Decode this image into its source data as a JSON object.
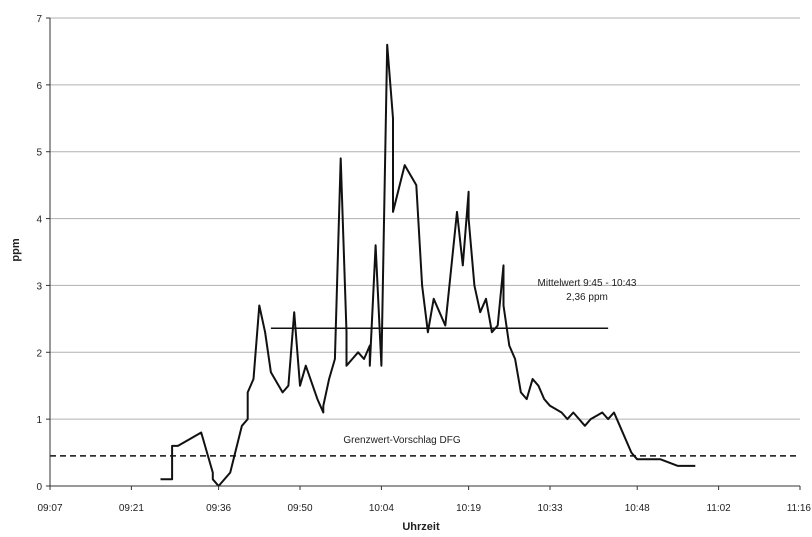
{
  "chart_data": {
    "type": "line",
    "title": "",
    "xlabel": "Uhrzeit",
    "ylabel": "ppm",
    "xlim": [
      "09:07",
      "11:16"
    ],
    "ylim": [
      0,
      7
    ],
    "grid": "horizontal",
    "x_ticks": [
      "09:07",
      "09:21",
      "09:36",
      "09:50",
      "10:04",
      "10:19",
      "10:33",
      "10:48",
      "11:02",
      "11:16"
    ],
    "y_ticks": [
      0,
      1,
      2,
      3,
      4,
      5,
      6,
      7
    ],
    "series": [
      {
        "x": [
          "09:26",
          "09:28",
          "09:28",
          "09:29",
          "09:31",
          "09:33",
          "09:35",
          "09:35",
          "09:36",
          "09:38",
          "09:40",
          "09:41",
          "09:41",
          "09:42",
          "09:43",
          "09:44",
          "09:45",
          "09:47",
          "09:47",
          "09:48",
          "09:49",
          "09:50",
          "09:51",
          "09:53",
          "09:54",
          "09:54",
          "09:55",
          "09:56",
          "09:57",
          "09:58",
          "09:58",
          "09:59",
          "10:00",
          "10:01",
          "10:02",
          "10:02",
          "10:03",
          "10:04",
          "10:05",
          "10:06",
          "10:06",
          "10:08",
          "10:10",
          "10:11",
          "10:12",
          "10:12",
          "10:13",
          "10:15",
          "10:17",
          "10:18",
          "10:19",
          "10:19",
          "10:20",
          "10:21",
          "10:22",
          "10:23",
          "10:24",
          "10:25",
          "10:25",
          "10:26",
          "10:27",
          "10:28",
          "10:29",
          "10:30",
          "10:31",
          "10:32",
          "10:33",
          "10:35",
          "10:36",
          "10:37",
          "10:38",
          "10:39",
          "10:40",
          "10:42",
          "10:43",
          "10:44",
          "10:45",
          "10:47",
          "10:48",
          "10:50",
          "10:52",
          "10:55",
          "10:58"
        ],
        "y": [
          0.1,
          0.1,
          0.6,
          0.6,
          0.7,
          0.8,
          0.2,
          0.1,
          0.0,
          0.2,
          0.9,
          1.0,
          1.4,
          1.6,
          2.7,
          2.3,
          1.7,
          1.4,
          1.4,
          1.5,
          2.6,
          1.5,
          1.8,
          1.3,
          1.1,
          1.2,
          1.6,
          1.9,
          4.9,
          2.3,
          1.8,
          1.9,
          2.0,
          1.9,
          2.1,
          1.8,
          3.6,
          1.8,
          6.6,
          5.5,
          4.1,
          4.8,
          4.5,
          3.0,
          2.3,
          2.3,
          2.8,
          2.4,
          4.1,
          3.3,
          4.4,
          4.0,
          3.0,
          2.6,
          2.8,
          2.3,
          2.4,
          3.3,
          2.7,
          2.1,
          1.9,
          1.4,
          1.3,
          1.6,
          1.5,
          1.3,
          1.2,
          1.1,
          1.0,
          1.1,
          1.0,
          0.9,
          1.0,
          1.1,
          1.0,
          1.1,
          0.9,
          0.5,
          0.4,
          0.4,
          0.4,
          0.3,
          0.3
        ]
      }
    ],
    "reference_lines": [
      {
        "label": "Grenzwert-Vorschlag DFG",
        "y": 0.45,
        "x_from": "09:07",
        "x_to": "11:16",
        "style": "dashed"
      },
      {
        "label": "Mittelwert 9:45 - 10:43",
        "value_label": "2,36 ppm",
        "y": 2.36,
        "x_from": "09:45",
        "x_to": "10:43",
        "style": "solid"
      }
    ]
  }
}
